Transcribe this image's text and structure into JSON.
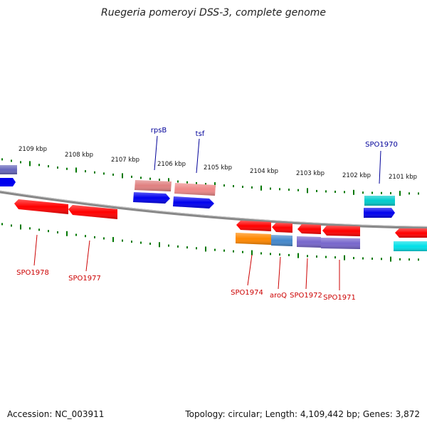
{
  "title": "Ruegeria pomeroyi DSS-3, complete genome",
  "footer": {
    "accession": "Accession: NC_003911",
    "summary": "Topology: circular; Length: 4,109,442 bp; Genes: 3,872"
  },
  "scale_labels": [
    "2109 kbp",
    "2108 kbp",
    "2107 kbp",
    "2106 kbp",
    "2105 kbp",
    "2104 kbp",
    "2103 kbp",
    "2102 kbp",
    "2101 kbp"
  ],
  "colors": {
    "red": "#ff0000",
    "blue": "#0000ee",
    "pink": "#ee8888",
    "cyan": "#00cccc",
    "orange": "#ff8800",
    "steel": "#4488cc",
    "purple": "#7766cc",
    "grey": "#aaaaaa",
    "backbone": "#888888",
    "ticks": "#007700",
    "label_red": "#cc0000",
    "label_blue": "#000099"
  },
  "gene_labels": [
    {
      "id": "rpsB",
      "text": "rpsB"
    },
    {
      "id": "tsf",
      "text": "tsf"
    },
    {
      "id": "SPO1970",
      "text": "SPO1970"
    },
    {
      "id": "SPO1978",
      "text": "SPO1978"
    },
    {
      "id": "SPO1977",
      "text": "SPO1977"
    },
    {
      "id": "SPO1974",
      "text": "SPO1974"
    },
    {
      "id": "aroQ",
      "text": "aroQ"
    },
    {
      "id": "SPO1972",
      "text": "SPO1972"
    },
    {
      "id": "SPO1971",
      "text": "SPO1971"
    }
  ]
}
